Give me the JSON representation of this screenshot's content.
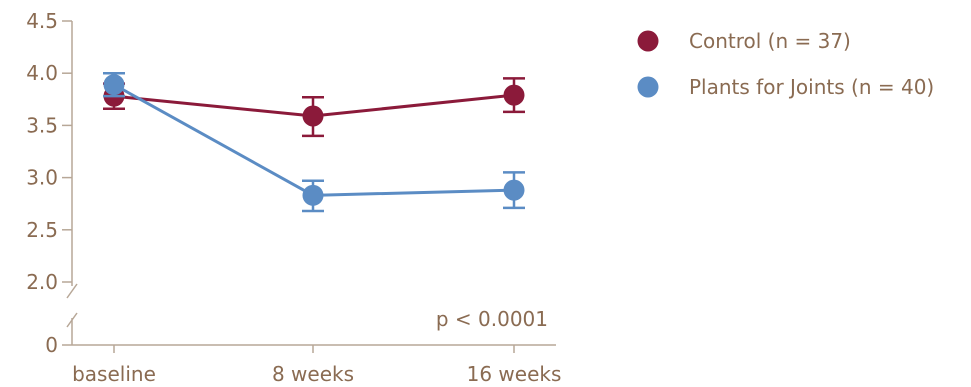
{
  "chart_data": {
    "type": "line",
    "title": "",
    "xlabel": "",
    "ylabel": "",
    "categories": [
      "baseline",
      "8 weeks",
      "16 weeks"
    ],
    "y_ticks_upper": [
      "2.0",
      "2.5",
      "3.0",
      "3.5",
      "4.0",
      "4.5"
    ],
    "y_tick_upper_values": [
      2.0,
      2.5,
      3.0,
      3.5,
      4.0,
      4.5
    ],
    "y_tick_lower": "0",
    "ylim": [
      2.0,
      4.5
    ],
    "axis_break": true,
    "grid": false,
    "legend_position": "top-right",
    "series": [
      {
        "name": "Control (n = 37)",
        "color": "#8b1a3a",
        "values": [
          3.78,
          3.59,
          3.79
        ],
        "err_low": [
          3.66,
          3.4,
          3.63
        ],
        "err_high": [
          3.9,
          3.77,
          3.95
        ]
      },
      {
        "name": "Plants for Joints (n = 40)",
        "color": "#5b8cc4",
        "values": [
          3.89,
          2.83,
          2.88
        ],
        "err_low": [
          3.78,
          2.68,
          2.71
        ],
        "err_high": [
          4.0,
          2.97,
          3.05
        ]
      }
    ],
    "annotation": "p < 0.0001"
  }
}
